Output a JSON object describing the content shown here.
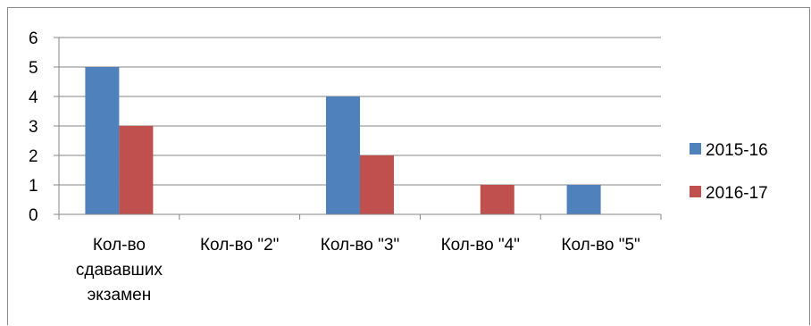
{
  "chart_data": {
    "type": "bar",
    "title": "",
    "xlabel": "",
    "ylabel": "",
    "categories": [
      [
        "Кол-во",
        "сдававших",
        "экзамен"
      ],
      [
        "Кол-во \"2\""
      ],
      [
        "Кол-во \"3\""
      ],
      [
        "Кол-во \"4\""
      ],
      [
        "Кол-во \"5\""
      ]
    ],
    "series": [
      {
        "name": "2015-16",
        "color": "#4f81bd",
        "values": [
          5,
          0,
          4,
          0,
          1
        ]
      },
      {
        "name": "2016-17",
        "color": "#c0504d",
        "values": [
          3,
          0,
          2,
          1,
          0
        ]
      }
    ],
    "ylim": [
      0,
      6
    ],
    "yticks": [
      "0",
      "1",
      "2",
      "3",
      "4",
      "5",
      "6"
    ],
    "grid": true,
    "legend_position": "right"
  }
}
